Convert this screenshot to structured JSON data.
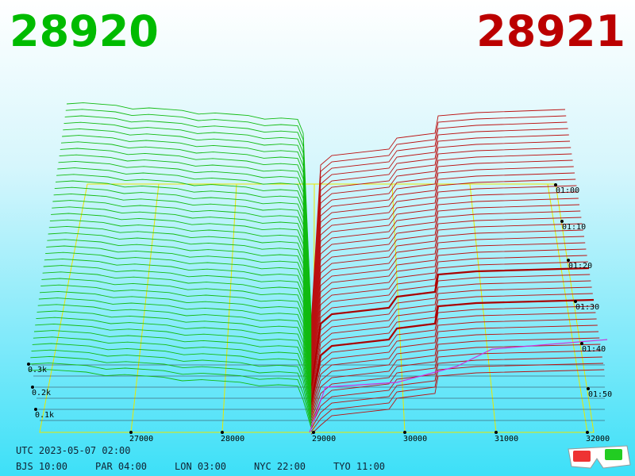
{
  "header": {
    "bid": "28920",
    "ask": "28921"
  },
  "price_axis": [
    "27000",
    "28000",
    "29000",
    "30000",
    "31000",
    "32000"
  ],
  "depth_axis": [
    "0.1k",
    "0.2k",
    "0.3k"
  ],
  "time_axis": [
    "01:00",
    "01:10",
    "01:20",
    "01:30",
    "01:40",
    "01:50"
  ],
  "footer": {
    "utc": "UTC 2023-05-07 02:00",
    "cities": [
      "BJS 10:00",
      "PAR 04:00",
      "LON 03:00",
      "NYC 22:00",
      "TYO 11:00"
    ]
  }
}
